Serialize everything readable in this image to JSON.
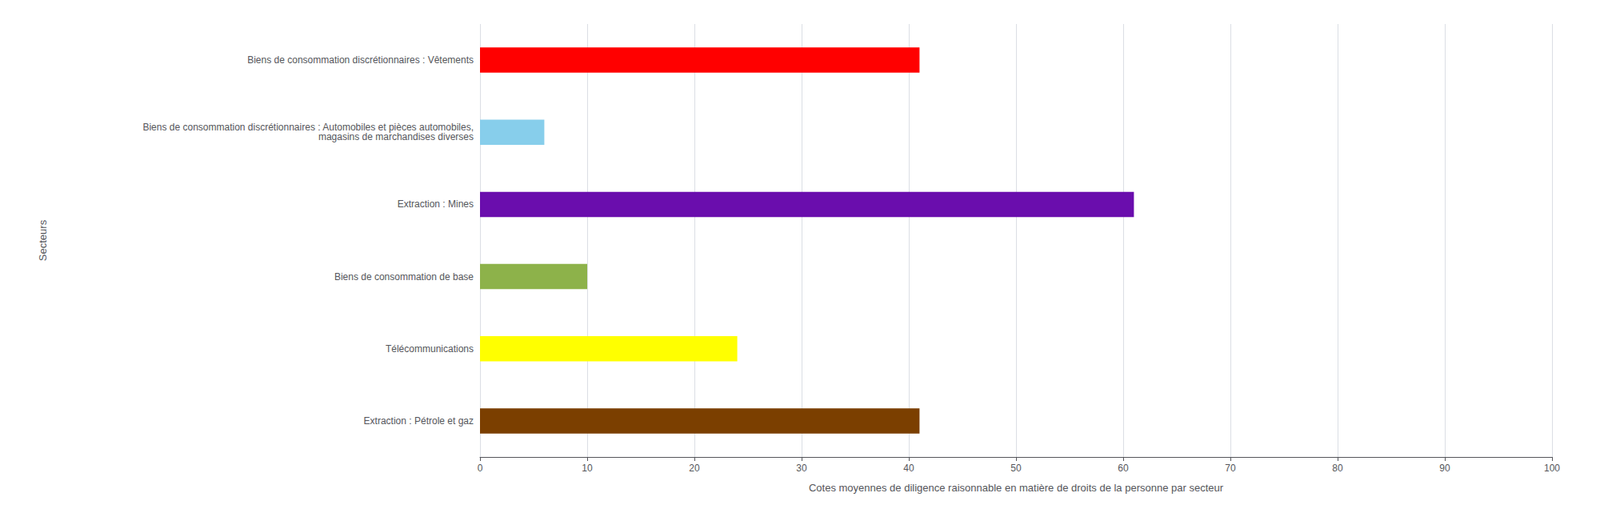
{
  "chart_data": {
    "type": "bar",
    "orientation": "horizontal",
    "categories": [
      "Extraction : Pétrole et gaz",
      "Télécommunications",
      "Biens de consommation de base",
      "Extraction : Mines",
      "Biens de consommation discrétionnaires : Automobiles et pièces automobiles,\nmagasins de marchandises diverses",
      "Biens de consommation discrétionnaires : Vêtements"
    ],
    "values": [
      41,
      24,
      10,
      61,
      6,
      41
    ],
    "colors": [
      "#7b3f00",
      "#ffff00",
      "#8db24a",
      "#6a0dad",
      "#87ceeb",
      "#ff0000"
    ],
    "xlabel": "Cotes moyennes de diligence raisonnable en matière de droits de la personne par secteur",
    "ylabel": "Secteurs",
    "xlim": [
      0,
      100
    ],
    "xticks": [
      0,
      10,
      20,
      30,
      40,
      50,
      60,
      70,
      80,
      90,
      100
    ],
    "grid": true
  }
}
